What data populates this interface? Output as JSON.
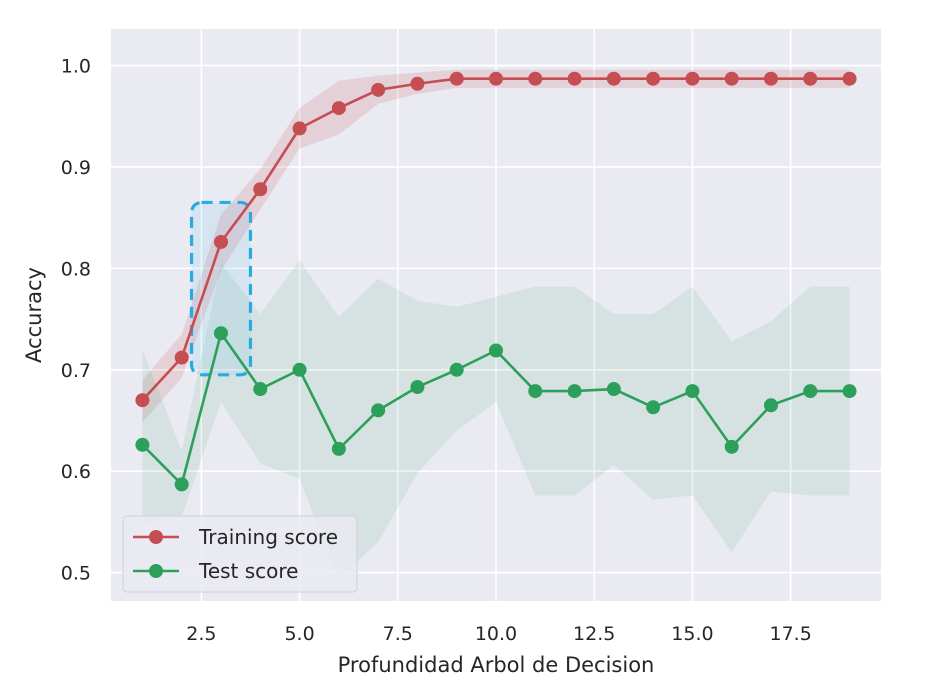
{
  "chart_data": {
    "type": "line",
    "title": "",
    "xlabel": "Profundidad Arbol de Decision",
    "ylabel": "Accuracy",
    "xlim": [
      0.2,
      19.8
    ],
    "ylim": [
      0.472,
      1.036
    ],
    "xticks": [
      2.5,
      5.0,
      7.5,
      10.0,
      12.5,
      15.0,
      17.5
    ],
    "xtick_labels": [
      "2.5",
      "5.0",
      "7.5",
      "10.0",
      "12.5",
      "15.0",
      "17.5"
    ],
    "yticks": [
      0.5,
      0.6,
      0.7,
      0.8,
      0.9,
      1.0
    ],
    "ytick_labels": [
      "0.5",
      "0.6",
      "0.7",
      "0.8",
      "0.9",
      "1.0"
    ],
    "grid": true,
    "background": "#eaeaf2",
    "legend_position": "lower-left",
    "x": [
      1,
      2,
      3,
      4,
      5,
      6,
      7,
      8,
      9,
      10,
      11,
      12,
      13,
      14,
      15,
      16,
      17,
      18,
      19
    ],
    "series": [
      {
        "name": "Training score",
        "color": "#c44e52",
        "values": [
          0.67,
          0.712,
          0.826,
          0.878,
          0.938,
          0.958,
          0.976,
          0.982,
          0.987,
          0.987,
          0.987,
          0.987,
          0.987,
          0.987,
          0.987,
          0.987,
          0.987,
          0.987,
          0.987
        ],
        "band_upper": [
          0.69,
          0.735,
          0.853,
          0.898,
          0.958,
          0.985,
          0.99,
          0.993,
          0.996,
          0.996,
          0.996,
          0.996,
          0.996,
          0.996,
          0.996,
          0.996,
          0.996,
          0.996,
          0.996
        ],
        "band_lower": [
          0.648,
          0.692,
          0.798,
          0.858,
          0.918,
          0.932,
          0.962,
          0.972,
          0.978,
          0.978,
          0.978,
          0.978,
          0.978,
          0.978,
          0.978,
          0.978,
          0.978,
          0.978,
          0.978
        ]
      },
      {
        "name": "Test score",
        "color": "#2ca05a",
        "values": [
          0.626,
          0.587,
          0.736,
          0.681,
          0.7,
          0.622,
          0.66,
          0.683,
          0.7,
          0.719,
          0.679,
          0.679,
          0.681,
          0.663,
          0.679,
          0.624,
          0.665,
          0.679,
          0.679
        ],
        "band_upper": [
          0.72,
          0.62,
          0.805,
          0.755,
          0.808,
          0.752,
          0.79,
          0.768,
          0.762,
          0.772,
          0.782,
          0.782,
          0.755,
          0.755,
          0.782,
          0.728,
          0.748,
          0.782,
          0.782
        ],
        "band_lower": [
          0.548,
          0.555,
          0.668,
          0.608,
          0.592,
          0.494,
          0.53,
          0.598,
          0.64,
          0.668,
          0.576,
          0.576,
          0.606,
          0.572,
          0.576,
          0.52,
          0.58,
          0.576,
          0.576
        ]
      }
    ],
    "highlight_box": {
      "x_range": [
        2.25,
        3.75
      ],
      "y_range": [
        0.695,
        0.865
      ],
      "color": "#29abe2",
      "style": "dashed"
    }
  }
}
